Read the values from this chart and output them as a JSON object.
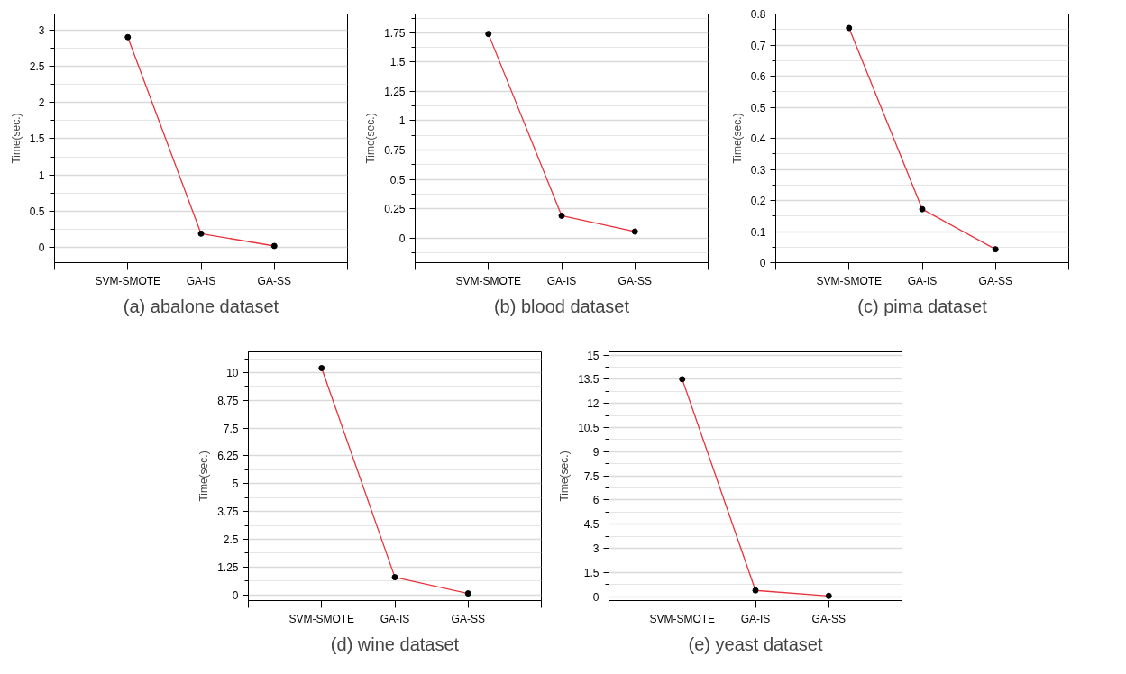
{
  "chart_data": [
    {
      "type": "line",
      "title": "(a) abalone dataset",
      "ylabel": "Time(sec.)",
      "categories": [
        "SVM-SMOTE",
        "GA-IS",
        "GA-SS"
      ],
      "series": [
        {
          "color": "#e8323c",
          "values": [
            2.9,
            0.19,
            0.02
          ]
        }
      ],
      "ylim": [
        -0.21,
        3.22
      ],
      "yticks": [
        0,
        0.5,
        1,
        1.5,
        2,
        2.5,
        3
      ],
      "grid": "y",
      "marker": "circle",
      "line_style": "solid"
    },
    {
      "type": "line",
      "title": "(b) blood dataset",
      "ylabel": "Time(sec.)",
      "categories": [
        "SVM-SMOTE",
        "GA-IS",
        "GA-SS"
      ],
      "series": [
        {
          "color": "#e8323c",
          "values": [
            1.74,
            0.19,
            0.055
          ]
        }
      ],
      "ylim": [
        -0.21,
        1.91
      ],
      "yticks": [
        0,
        0.25,
        0.5,
        0.75,
        1,
        1.25,
        1.5,
        1.75
      ],
      "grid": "y",
      "marker": "circle",
      "line_style": "solid"
    },
    {
      "type": "line",
      "title": "(c) pima dataset",
      "ylabel": "Time(sec.)",
      "categories": [
        "SVM-SMOTE",
        "GA-IS",
        "GA-SS"
      ],
      "series": [
        {
          "color": "#e8323c",
          "values": [
            0.755,
            0.172,
            0.043
          ]
        }
      ],
      "ylim": [
        0,
        0.8
      ],
      "yticks": [
        0,
        0.1,
        0.2,
        0.3,
        0.4,
        0.5,
        0.6,
        0.7,
        0.8
      ],
      "grid": "y",
      "marker": "circle",
      "line_style": "solid"
    },
    {
      "type": "line",
      "title": "(d) wine dataset",
      "ylabel": "Time(sec.)",
      "categories": [
        "SVM-SMOTE",
        "GA-IS",
        "GA-SS"
      ],
      "series": [
        {
          "color": "#e8323c",
          "values": [
            10.2,
            0.79,
            0.06
          ]
        }
      ],
      "ylim": [
        -0.26,
        10.93
      ],
      "yticks": [
        0,
        1.25,
        2.5,
        3.75,
        5,
        6.25,
        7.5,
        8.75,
        10
      ],
      "grid": "y",
      "marker": "circle",
      "line_style": "solid"
    },
    {
      "type": "line",
      "title": "(e) yeast dataset",
      "ylabel": "Time(sec.)",
      "categories": [
        "SVM-SMOTE",
        "GA-IS",
        "GA-SS"
      ],
      "series": [
        {
          "color": "#e8323c",
          "values": [
            13.5,
            0.38,
            0.04
          ]
        }
      ],
      "ylim": [
        -0.25,
        15.2
      ],
      "yticks": [
        0,
        1.5,
        3,
        4.5,
        6,
        7.5,
        9,
        10.5,
        12,
        13.5,
        15
      ],
      "grid": "y",
      "marker": "circle",
      "line_style": "solid"
    }
  ]
}
